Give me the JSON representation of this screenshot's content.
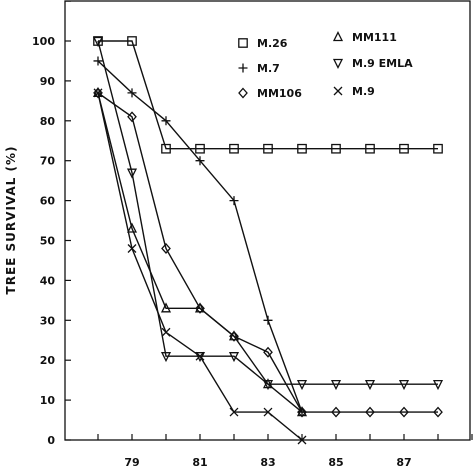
{
  "chart_data": {
    "type": "line",
    "title": "",
    "xlabel": "",
    "ylabel": "TREE SURVIVAL (%)",
    "xlim": [
      77,
      90
    ],
    "ylim": [
      0,
      110
    ],
    "x_ticks": [
      78,
      79,
      80,
      81,
      82,
      83,
      84,
      85,
      86,
      87,
      88,
      89
    ],
    "x_tick_labels": [
      "79",
      "81",
      "83",
      "85",
      "87"
    ],
    "x_tick_label_values": [
      79,
      81,
      83,
      85,
      87
    ],
    "y_ticks": [
      0,
      10,
      20,
      30,
      40,
      50,
      60,
      70,
      80,
      90,
      100,
      110
    ],
    "y_tick_labels": [
      "0",
      "10",
      "20",
      "30",
      "40",
      "50",
      "60",
      "70",
      "80",
      "90",
      "100"
    ],
    "grid": false,
    "legend_position": "top-right",
    "series": [
      {
        "name": "M.26",
        "marker": "square",
        "x": [
          78,
          79,
          80,
          81,
          82,
          83,
          84,
          85,
          86,
          87,
          88
        ],
        "values": [
          100,
          100,
          73,
          73,
          73,
          73,
          73,
          73,
          73,
          73,
          73
        ]
      },
      {
        "name": "M.7",
        "marker": "plus",
        "x": [
          78,
          79,
          80,
          81,
          82,
          83,
          84
        ],
        "values": [
          95,
          87,
          80,
          70,
          60,
          30,
          7
        ]
      },
      {
        "name": "MM106",
        "marker": "diamond",
        "x": [
          78,
          79,
          80,
          81,
          82,
          83,
          84,
          85,
          86,
          87,
          88
        ],
        "values": [
          87,
          81,
          48,
          33,
          26,
          22,
          7,
          7,
          7,
          7,
          7
        ]
      },
      {
        "name": "MM111",
        "marker": "triangle",
        "x": [
          78,
          79,
          80,
          81,
          82,
          83,
          84
        ],
        "values": [
          87,
          53,
          33,
          33,
          26,
          14,
          7
        ]
      },
      {
        "name": "M.9 EMLA",
        "marker": "triangle-down",
        "x": [
          78,
          79,
          80,
          81,
          82,
          83,
          84,
          85,
          86,
          87,
          88
        ],
        "values": [
          100,
          67,
          21,
          21,
          21,
          14,
          14,
          14,
          14,
          14,
          14
        ]
      },
      {
        "name": "M.9",
        "marker": "x",
        "x": [
          78,
          79,
          80,
          81,
          82,
          83,
          84
        ],
        "values": [
          87,
          48,
          27,
          21,
          7,
          7,
          0
        ]
      }
    ]
  }
}
